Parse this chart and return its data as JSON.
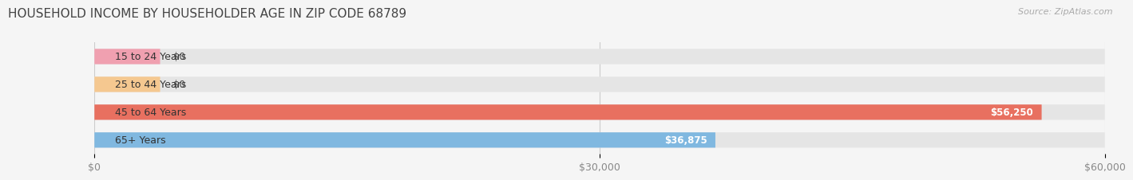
{
  "title": "HOUSEHOLD INCOME BY HOUSEHOLDER AGE IN ZIP CODE 68789",
  "source": "Source: ZipAtlas.com",
  "categories": [
    "15 to 24 Years",
    "25 to 44 Years",
    "45 to 64 Years",
    "65+ Years"
  ],
  "values": [
    0,
    0,
    56250,
    36875
  ],
  "bar_colors": [
    "#f0a0b0",
    "#f5c890",
    "#e87060",
    "#80b8e0"
  ],
  "value_labels": [
    "$0",
    "$0",
    "$56,250",
    "$36,875"
  ],
  "xlim": [
    0,
    60000
  ],
  "xticks": [
    0,
    30000,
    60000
  ],
  "xticklabels": [
    "$0",
    "$30,000",
    "$60,000"
  ],
  "background_color": "#f5f5f5",
  "bar_bg_color": "#e5e5e5",
  "title_fontsize": 11,
  "source_fontsize": 8,
  "tick_fontsize": 9,
  "label_fontsize": 9,
  "value_fontsize": 8.5
}
